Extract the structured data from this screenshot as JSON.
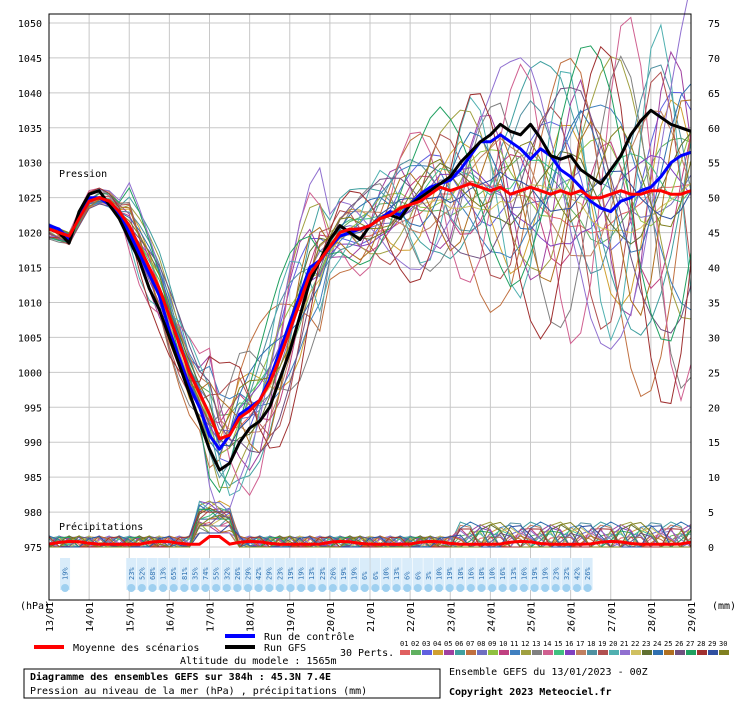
{
  "chart_data": {
    "type": "line",
    "title": "Diagramme des ensembles GEFS sur 384h : 45.3N 7.4E",
    "subtitle": "Pression au niveau de la mer (hPa) , précipitations (mm)",
    "model_altitude": "Altitude du modele : 1565m",
    "run_info": "Ensemble GEFS du 13/01/2023 - 00Z",
    "copyright": "Copyright 2023 Meteociel.fr",
    "pressure_label": "Pression",
    "precip_label": "Précipitations",
    "left_unit": "(hPa)",
    "right_unit": "(mm)",
    "x_ticks": [
      "13/01",
      "14/01",
      "15/01",
      "16/01",
      "17/01",
      "18/01",
      "19/01",
      "20/01",
      "21/01",
      "22/01",
      "23/01",
      "24/01",
      "25/01",
      "26/01",
      "27/01",
      "28/01",
      "29/01"
    ],
    "pressure_ticks": [
      1050,
      1045,
      1040,
      1035,
      1030,
      1025,
      1020,
      1015,
      1010,
      1005,
      1000,
      995,
      990,
      985,
      980,
      975
    ],
    "precip_ticks": [
      75,
      70,
      65,
      60,
      55,
      50,
      45,
      40,
      35,
      30,
      25,
      20,
      15,
      10,
      5,
      0
    ],
    "ylim_pressure": [
      975,
      1050
    ],
    "ylim_precip": [
      0,
      75
    ],
    "grid": true,
    "legend": {
      "mean": "Moyenne des scénarios",
      "control": "Run de contrôle",
      "gfs": "Run GFS",
      "perts": "30 Perts.",
      "pert_ids": [
        "01",
        "02",
        "03",
        "04",
        "05",
        "06",
        "07",
        "08",
        "09",
        "10",
        "11",
        "12",
        "13",
        "14",
        "15",
        "16",
        "17",
        "18",
        "19",
        "20",
        "21",
        "22",
        "23",
        "24",
        "25",
        "26",
        "27",
        "28",
        "29",
        "30"
      ],
      "pert_colors": [
        "#e06060",
        "#60b060",
        "#6060e0",
        "#d0a030",
        "#a040a0",
        "#40a0a0",
        "#c07040",
        "#7070c0",
        "#90c040",
        "#c04080",
        "#4080c0",
        "#a0a040",
        "#808080",
        "#d06090",
        "#40c080",
        "#8040c0",
        "#c08060",
        "#5090a0",
        "#b05050",
        "#50b0b0",
        "#9070d0",
        "#d0c060",
        "#607030",
        "#3070b0",
        "#b07020",
        "#705080",
        "#20a060",
        "#a03030",
        "#3050a0",
        "#808020"
      ]
    },
    "precip_percent_labels": [
      "19%",
      "23%",
      "52%",
      "68%",
      "13%",
      "65%",
      "81%",
      "35%",
      "74%",
      "55%",
      "32%",
      "26%",
      "29%",
      "42%",
      "29%",
      "23%",
      "19%",
      "19%",
      "13%",
      "23%",
      "26%",
      "19%",
      "19%",
      "6%",
      "6%",
      "10%",
      "13%",
      "6%",
      "6%",
      "3%",
      "10%",
      "19%",
      "10%",
      "16%",
      "10%",
      "10%",
      "16%",
      "13%",
      "16%",
      "19%",
      "19%",
      "23%",
      "32%",
      "42%",
      "26%"
    ],
    "series": [
      {
        "name": "Moyenne des scénarios",
        "color": "#ff0000",
        "x": [
          0,
          0.25,
          0.5,
          0.75,
          1,
          1.25,
          1.5,
          1.75,
          2,
          2.25,
          2.5,
          2.75,
          3,
          3.25,
          3.5,
          3.75,
          4,
          4.25,
          4.5,
          4.75,
          5,
          5.25,
          5.5,
          5.75,
          6,
          6.25,
          6.5,
          6.75,
          7,
          7.25,
          7.5,
          7.75,
          8,
          8.25,
          8.5,
          8.75,
          9,
          9.25,
          9.5,
          9.75,
          10,
          10.25,
          10.5,
          10.75,
          11,
          11.25,
          11.5,
          11.75,
          12,
          12.25,
          12.5,
          12.75,
          13,
          13.25,
          13.5,
          13.75,
          14,
          14.25,
          14.5,
          14.75,
          15,
          15.25,
          15.5,
          15.75,
          16
        ],
        "y": [
          1020.5,
          1020,
          1019.5,
          1022,
          1024.5,
          1025,
          1024.5,
          1023,
          1021,
          1018,
          1015,
          1012,
          1008,
          1004,
          1000,
          997,
          994,
          990.5,
          991,
          993.5,
          994.5,
          996,
          998.5,
          1002,
          1006,
          1010,
          1014,
          1016,
          1018,
          1020,
          1020.5,
          1020.5,
          1021,
          1022,
          1022.5,
          1023.5,
          1024,
          1024.5,
          1025.5,
          1026.5,
          1026,
          1026.5,
          1027,
          1026.5,
          1026,
          1026.5,
          1025.5,
          1026,
          1026.5,
          1026,
          1025.5,
          1026,
          1025.5,
          1026,
          1025,
          1025,
          1025.5,
          1026,
          1025.5,
          1025.5,
          1026,
          1026,
          1025.5,
          1025.5,
          1026
        ]
      },
      {
        "name": "Run de contrôle",
        "color": "#0000ff",
        "x": [
          0,
          0.25,
          0.5,
          0.75,
          1,
          1.25,
          1.5,
          1.75,
          2,
          2.25,
          2.5,
          2.75,
          3,
          3.25,
          3.5,
          3.75,
          4,
          4.25,
          4.5,
          4.75,
          5,
          5.25,
          5.5,
          5.75,
          6,
          6.25,
          6.5,
          6.75,
          7,
          7.25,
          7.5,
          7.75,
          8,
          8.25,
          8.5,
          8.75,
          9,
          9.25,
          9.5,
          9.75,
          10,
          10.25,
          10.5,
          10.75,
          11,
          11.25,
          11.5,
          11.75,
          12,
          12.25,
          12.5,
          12.75,
          13,
          13.25,
          13.5,
          13.75,
          14,
          14.25,
          14.5,
          14.75,
          15,
          15.25,
          15.5,
          15.75,
          16
        ],
        "y": [
          1021,
          1020.5,
          1019,
          1022.5,
          1025,
          1025,
          1024,
          1022.5,
          1020,
          1017,
          1014,
          1011,
          1006,
          1002,
          998,
          995,
          991,
          989,
          991,
          994,
          995,
          996,
          999,
          1003,
          1007,
          1011,
          1015,
          1016,
          1018,
          1019.5,
          1020,
          1020.5,
          1021,
          1022,
          1023,
          1022.5,
          1024,
          1025.5,
          1026.5,
          1027,
          1027.5,
          1029,
          1031,
          1033,
          1033,
          1034,
          1033,
          1032,
          1030.5,
          1032,
          1031,
          1029,
          1028,
          1026.5,
          1024.5,
          1023.5,
          1023,
          1024.5,
          1025,
          1026,
          1026.5,
          1028,
          1030,
          1031,
          1031.5
        ]
      },
      {
        "name": "Run GFS",
        "color": "#000000",
        "x": [
          0,
          0.25,
          0.5,
          0.75,
          1,
          1.25,
          1.5,
          1.75,
          2,
          2.25,
          2.5,
          2.75,
          3,
          3.25,
          3.5,
          3.75,
          4,
          4.25,
          4.5,
          4.75,
          5,
          5.25,
          5.5,
          5.75,
          6,
          6.25,
          6.5,
          6.75,
          7,
          7.25,
          7.5,
          7.75,
          8,
          8.25,
          8.5,
          8.75,
          9,
          9.25,
          9.5,
          9.75,
          10,
          10.25,
          10.5,
          10.75,
          11,
          11.25,
          11.5,
          11.75,
          12,
          12.25,
          12.5,
          12.75,
          13,
          13.25,
          13.5,
          13.75,
          14,
          14.25,
          14.5,
          14.75,
          15,
          15.25,
          15.5,
          15.75,
          16
        ],
        "y": [
          1020.5,
          1020,
          1018.5,
          1023,
          1025.5,
          1026,
          1024,
          1022,
          1019,
          1016,
          1012,
          1009,
          1005,
          1001,
          997,
          993,
          989,
          986,
          987,
          990,
          992,
          993,
          995,
          999,
          1003,
          1008,
          1013,
          1016,
          1019,
          1021,
          1020,
          1019,
          1021,
          1022,
          1022.5,
          1022,
          1024,
          1025,
          1026,
          1027,
          1028,
          1030,
          1031.5,
          1033,
          1034,
          1035.5,
          1034.5,
          1034,
          1035.5,
          1033.5,
          1031,
          1030.5,
          1031,
          1029,
          1028,
          1027,
          1029,
          1031,
          1034,
          1036,
          1037.5,
          1036.5,
          1035.5,
          1035,
          1034.5
        ]
      }
    ]
  }
}
